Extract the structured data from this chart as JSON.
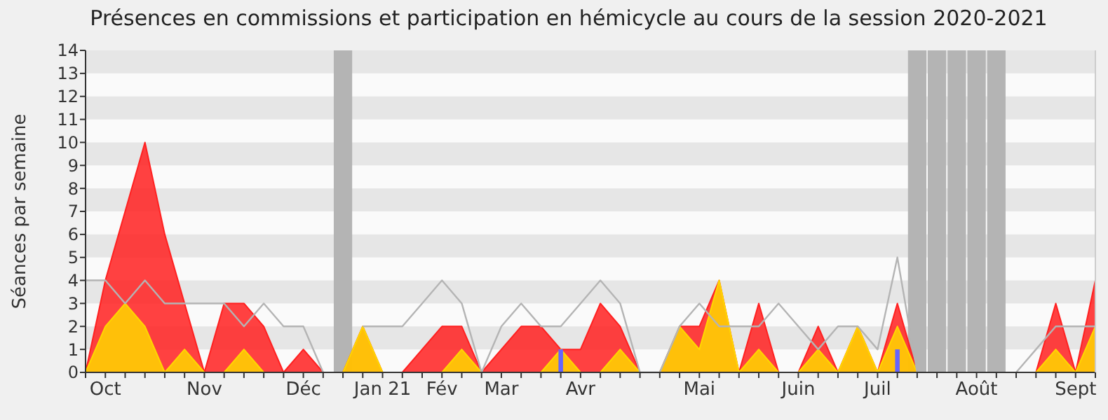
{
  "chart_data": {
    "type": "area",
    "title": "Présences en commissions et participation en hémicycle au cours de la session 2020-2021",
    "ylabel": "Séances par semaine",
    "categories": [
      null,
      "Oct",
      null,
      null,
      null,
      null,
      "Nov",
      null,
      null,
      null,
      null,
      "Déc",
      null,
      null,
      null,
      "Jan 21",
      null,
      null,
      "Fév",
      null,
      null,
      "Mar",
      null,
      null,
      null,
      "Avr",
      null,
      null,
      null,
      null,
      null,
      "Mai",
      null,
      null,
      null,
      null,
      "Juin",
      null,
      null,
      null,
      "Juil",
      null,
      null,
      null,
      null,
      "Août",
      null,
      null,
      null,
      null,
      "Sept",
      null
    ],
    "ylim": [
      0,
      14
    ],
    "yticks": [
      0,
      1,
      2,
      3,
      4,
      5,
      6,
      7,
      8,
      9,
      10,
      11,
      12,
      13,
      14
    ],
    "series": [
      {
        "type": "bar",
        "color": "#b4b4b4",
        "values": [
          null,
          null,
          null,
          null,
          null,
          null,
          null,
          null,
          null,
          null,
          null,
          null,
          null,
          14,
          null,
          null,
          null,
          null,
          null,
          null,
          null,
          null,
          null,
          null,
          null,
          null,
          null,
          null,
          null,
          null,
          null,
          null,
          null,
          null,
          null,
          null,
          null,
          null,
          null,
          null,
          null,
          null,
          14,
          14,
          14,
          14,
          14,
          null,
          null,
          null,
          null,
          null
        ]
      },
      {
        "color": "#ff2020",
        "values": [
          0,
          4,
          7,
          10,
          6,
          3,
          0,
          3,
          3,
          2,
          0,
          1,
          0,
          0,
          2,
          0,
          0,
          1,
          2,
          2,
          0,
          1,
          2,
          2,
          1,
          1,
          3,
          2,
          0,
          0,
          2,
          2,
          4,
          0,
          3,
          0,
          0,
          2,
          0,
          2,
          0,
          3,
          0,
          0,
          0,
          0,
          0,
          0,
          0,
          3,
          0,
          4
        ]
      },
      {
        "color": "#ffd700",
        "values": [
          0,
          2,
          3,
          2,
          0,
          1,
          0,
          0,
          1,
          0,
          0,
          0,
          0,
          0,
          2,
          0,
          0,
          0,
          0,
          1,
          0,
          0,
          0,
          0,
          1,
          0,
          0,
          1,
          0,
          0,
          2,
          1,
          4,
          0,
          1,
          0,
          0,
          1,
          0,
          2,
          0,
          2,
          0,
          0,
          0,
          0,
          0,
          0,
          0,
          1,
          0,
          2
        ]
      },
      {
        "type": "line",
        "color": "#b4b4b4",
        "values": [
          4,
          4,
          3,
          4,
          3,
          3,
          3,
          3,
          2,
          3,
          2,
          2,
          0,
          null,
          2,
          2,
          2,
          3,
          4,
          3,
          0,
          2,
          3,
          2,
          2,
          3,
          4,
          3,
          0,
          0,
          2,
          3,
          2,
          2,
          2,
          3,
          2,
          1,
          2,
          2,
          1,
          5,
          0,
          null,
          null,
          null,
          null,
          0,
          1,
          2,
          2,
          2
        ]
      },
      {
        "type": "bar",
        "color": "#6464ff",
        "values": [
          null,
          null,
          null,
          null,
          null,
          null,
          null,
          null,
          null,
          null,
          null,
          null,
          null,
          null,
          null,
          null,
          null,
          null,
          null,
          null,
          null,
          null,
          null,
          null,
          1,
          null,
          null,
          null,
          null,
          null,
          null,
          null,
          null,
          null,
          null,
          null,
          null,
          null,
          null,
          null,
          null,
          1,
          null,
          null,
          null,
          null,
          null,
          null,
          null,
          null,
          null,
          null
        ]
      }
    ]
  }
}
